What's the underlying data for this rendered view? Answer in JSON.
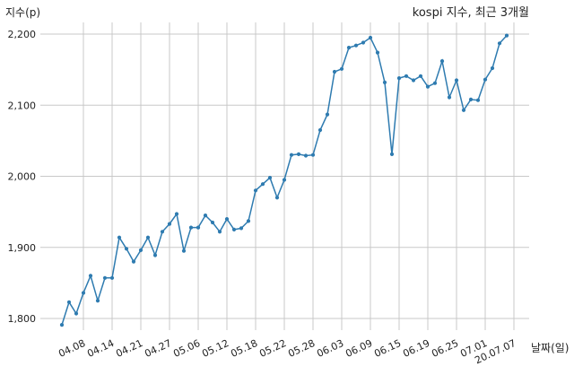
{
  "chart_data": {
    "type": "line",
    "title": "kospi 지수, 최근 3개월",
    "xlabel": "날짜(일)",
    "ylabel": "지수(p)",
    "ylim": [
      1770,
      2225
    ],
    "grid": true,
    "color": "#2e7bb0",
    "yticks": [
      1800,
      1900,
      2000,
      2100,
      2200
    ],
    "ytick_labels": [
      "1,800",
      "1,900",
      "2,000",
      "2,100",
      "2,200"
    ],
    "xtick_labels": [
      "04.08",
      "04.14",
      "04.21",
      "04.27",
      "05.06",
      "05.12",
      "05.18",
      "05.22",
      "05.28",
      "06.03",
      "06.09",
      "06.15",
      "06.19",
      "06.25",
      "07.01",
      "20.07.07"
    ],
    "xtick_index": [
      3,
      7,
      11,
      15,
      19,
      23,
      27,
      31,
      35,
      39,
      43,
      47,
      51,
      55,
      59,
      63
    ],
    "values": [
      1791,
      1823,
      1807,
      1836,
      1860,
      1825,
      1857,
      1857,
      1914,
      1898,
      1880,
      1896,
      1914,
      1889,
      1922,
      1933,
      1947,
      1895,
      1928,
      1928,
      1945,
      1935,
      1922,
      1940,
      1925,
      1927,
      1937,
      1980,
      1989,
      1998,
      1970,
      1995,
      2030,
      2031,
      2029,
      2030,
      2065,
      2087,
      2147,
      2151,
      2181,
      2184,
      2188,
      2195,
      2174,
      2132,
      2031,
      2138,
      2141,
      2135,
      2141,
      2126,
      2131,
      2162,
      2111,
      2135,
      2093,
      2108,
      2107,
      2136,
      2152,
      2187,
      2198
    ]
  }
}
